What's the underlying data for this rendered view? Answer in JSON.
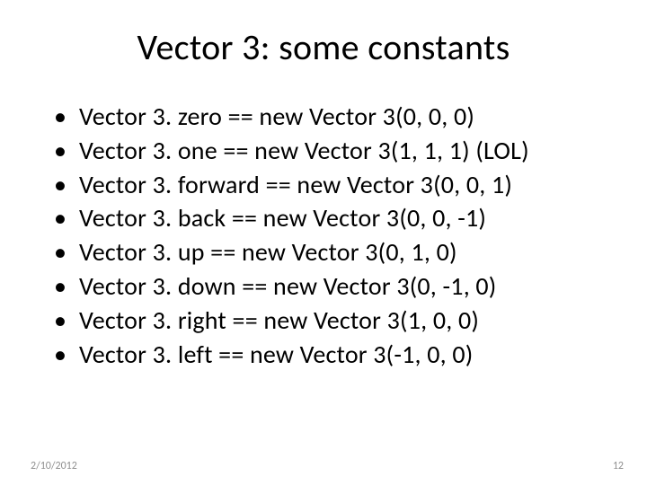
{
  "slide": {
    "title": "Vector 3: some constants",
    "title_fontsize": 40,
    "title_color": "#000000",
    "background_color": "#ffffff",
    "bullets": [
      "Vector 3. zero  == new Vector 3(0, 0, 0)",
      "Vector 3. one  == new Vector 3(1, 1, 1) (LOL)",
      "Vector 3. forward  == new Vector 3(0, 0, 1)",
      "Vector 3. back  == new Vector 3(0, 0, -1)",
      "Vector 3. up  == new Vector 3(0, 1, 0)",
      "Vector 3. down  == new Vector 3(0, -1, 0)",
      "Vector 3. right  == new Vector 3(1, 0, 0)",
      "Vector 3. left  == new Vector 3(-1, 0, 0)"
    ],
    "bullet_fontsize": 28,
    "bullet_color": "#000000",
    "footer": {
      "date": "2/10/2012",
      "page": "12",
      "fontsize": 12,
      "color": "#8f8f8f"
    }
  }
}
